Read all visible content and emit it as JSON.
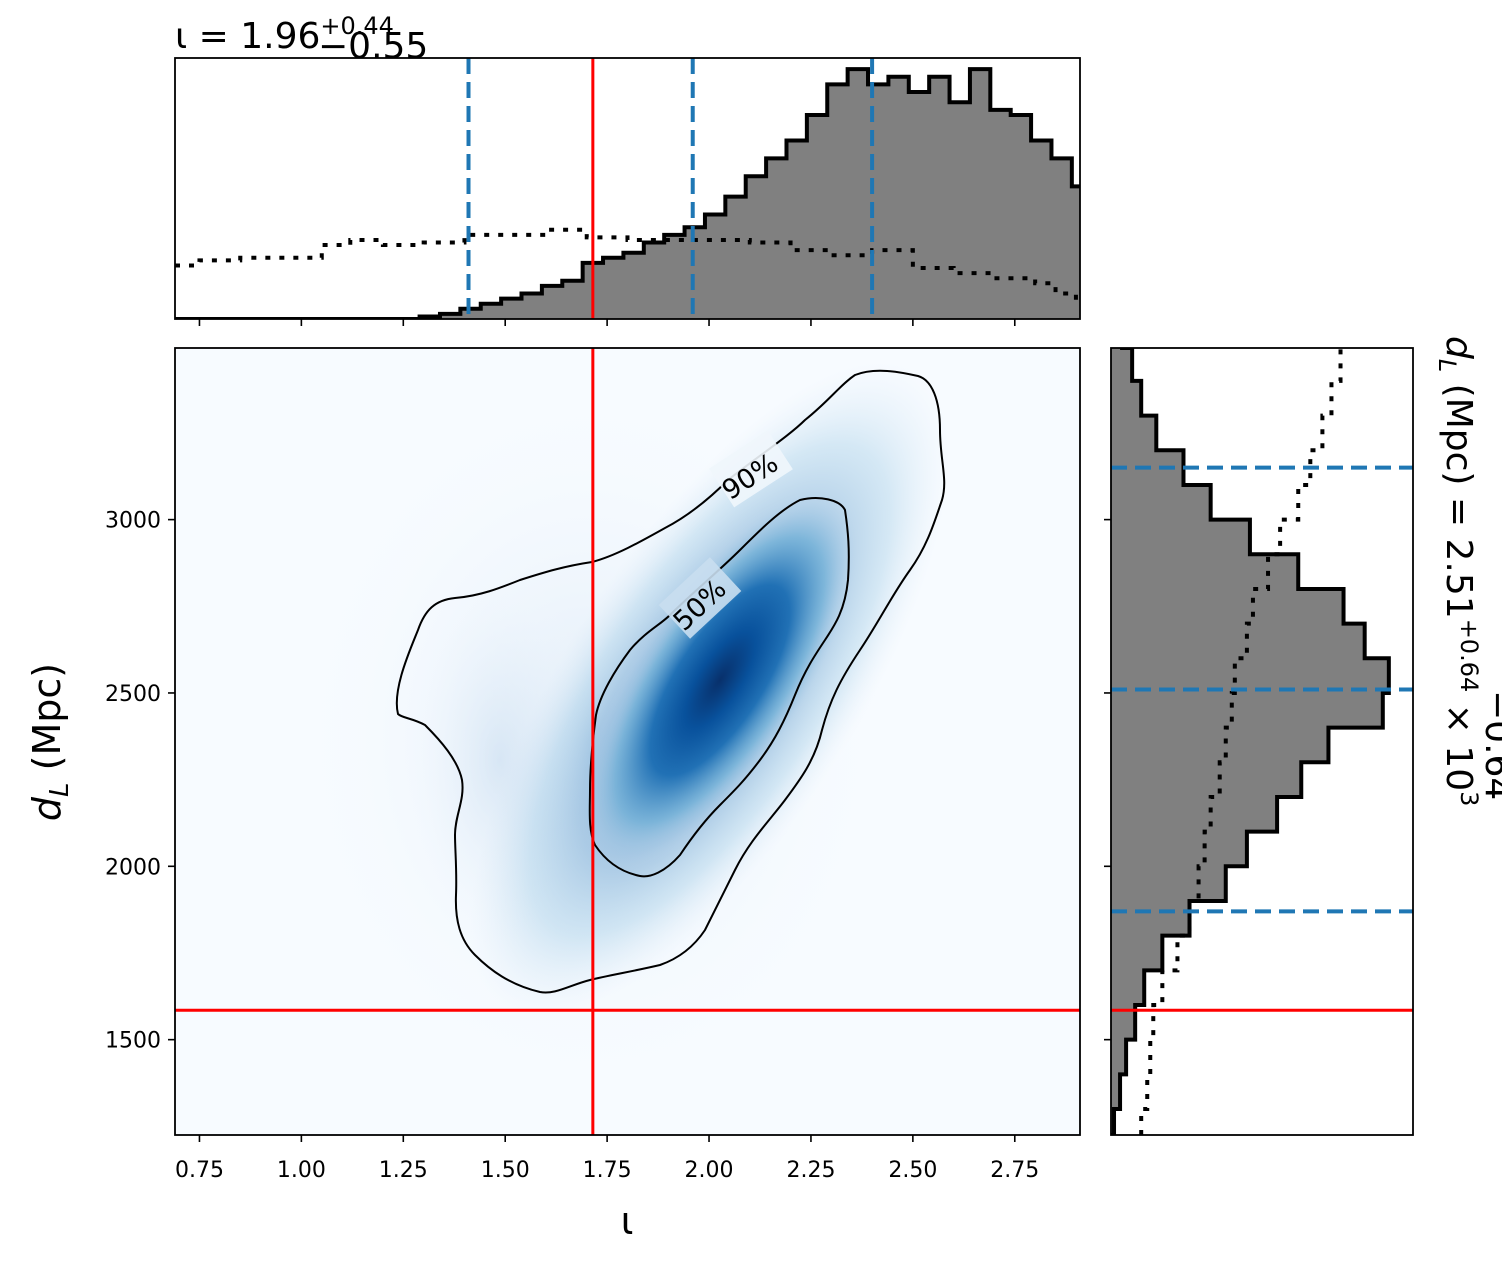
{
  "chart_data": {
    "type": "corner",
    "parameters": [
      "ι",
      "d_L (Mpc)"
    ],
    "x_axis": {
      "label": "ι",
      "xlim": [
        0.69,
        2.91
      ],
      "ticks": [
        0.75,
        1.0,
        1.25,
        1.5,
        1.75,
        2.0,
        2.25,
        2.5,
        2.75
      ],
      "tick_labels": [
        "0.75",
        "1.00",
        "1.25",
        "1.50",
        "1.75",
        "2.00",
        "2.25",
        "2.50",
        "2.75"
      ]
    },
    "y_axis": {
      "label_symbol": "d",
      "label_sub": "L",
      "label_rest": " (Mpc)",
      "ylim": [
        1225,
        3495
      ],
      "ticks": [
        1500,
        2000,
        2500,
        3000
      ],
      "tick_labels": [
        "1500",
        "2000",
        "2500",
        "3000"
      ]
    },
    "marginal_top": {
      "title_lhs": "ι = 1.96",
      "title_sup": "+0.44",
      "title_sub": "−0.55",
      "median": 1.96,
      "lower": 1.41,
      "upper": 2.4,
      "injected": 1.715,
      "posterior_hist": {
        "bin_edges_start": 0.69,
        "bin_width": 0.05,
        "counts": [
          0,
          0,
          0,
          0,
          0,
          0,
          0,
          0,
          0,
          0,
          0,
          0,
          0.01,
          0.02,
          0.04,
          0.06,
          0.08,
          0.1,
          0.13,
          0.15,
          0.22,
          0.24,
          0.26,
          0.3,
          0.33,
          0.36,
          0.41,
          0.48,
          0.56,
          0.63,
          0.7,
          0.8,
          0.92,
          0.98,
          0.92,
          0.95,
          0.89,
          0.95,
          0.85,
          0.98,
          0.82,
          0.8,
          0.7,
          0.63,
          0.52,
          0.41,
          0.29,
          0.18,
          0.11,
          0.06,
          0.03,
          0.02,
          0.01,
          0,
          0,
          0,
          0,
          0,
          0,
          0,
          0,
          0,
          0,
          0,
          0
        ]
      },
      "prior_hist": {
        "x": [
          0.69,
          0.75,
          0.85,
          0.95,
          1.05,
          1.12,
          1.2,
          1.3,
          1.4,
          1.5,
          1.6,
          1.7,
          1.8,
          1.9,
          2.0,
          2.1,
          2.2,
          2.3,
          2.4,
          2.5,
          2.6,
          2.7,
          2.8,
          2.85,
          2.9
        ],
        "y": [
          0.21,
          0.23,
          0.24,
          0.24,
          0.29,
          0.31,
          0.29,
          0.3,
          0.33,
          0.33,
          0.35,
          0.32,
          0.31,
          0.31,
          0.31,
          0.3,
          0.27,
          0.25,
          0.27,
          0.2,
          0.18,
          0.16,
          0.14,
          0.1,
          0.05
        ]
      }
    },
    "marginal_right": {
      "title_lhs_symbol": "d",
      "title_lhs_sub": "L",
      "title_lhs_rest": " (Mpc) = 2.51",
      "title_sup": "+0.64",
      "title_sub": "−0.64",
      "title_multiplier": " × 10",
      "title_exponent": "3",
      "median": 2510,
      "lower": 1870,
      "upper": 3150,
      "injected": 1585,
      "posterior_hist": {
        "y": [
          1225,
          1300,
          1400,
          1500,
          1600,
          1700,
          1800,
          1900,
          2000,
          2100,
          2200,
          2300,
          2400,
          2500,
          2600,
          2700,
          2800,
          2900,
          3000,
          3100,
          3200,
          3300,
          3400,
          3495
        ],
        "counts": [
          0.01,
          0.03,
          0.05,
          0.08,
          0.11,
          0.17,
          0.26,
          0.38,
          0.45,
          0.55,
          0.63,
          0.72,
          0.9,
          0.92,
          0.84,
          0.77,
          0.62,
          0.46,
          0.33,
          0.24,
          0.15,
          0.1,
          0.07,
          0.03
        ]
      },
      "prior_hist": {
        "y": [
          1225,
          1300,
          1400,
          1500,
          1600,
          1700,
          1800,
          1900,
          2000,
          2100,
          2200,
          2300,
          2400,
          2500,
          2600,
          2700,
          2800,
          2900,
          3000,
          3100,
          3200,
          3300,
          3400,
          3495
        ],
        "counts": [
          0.1,
          0.12,
          0.13,
          0.14,
          0.17,
          0.22,
          0.26,
          0.29,
          0.31,
          0.33,
          0.36,
          0.38,
          0.4,
          0.41,
          0.45,
          0.47,
          0.52,
          0.56,
          0.62,
          0.66,
          0.7,
          0.73,
          0.76,
          0.78
        ]
      }
    },
    "joint": {
      "type": "heatmap_2d_kde",
      "colormap": "Blues",
      "peak": [
        1.95,
        2450
      ],
      "contours": [
        {
          "label": "50%"
        },
        {
          "label": "90%"
        }
      ],
      "injected": [
        1.715,
        1585
      ]
    },
    "colors": {
      "posterior_fill": "#808080",
      "posterior_edge": "#000000",
      "credible_lines": "#1f77b4",
      "injected_lines": "#ff0000",
      "prior": "#000000"
    }
  }
}
